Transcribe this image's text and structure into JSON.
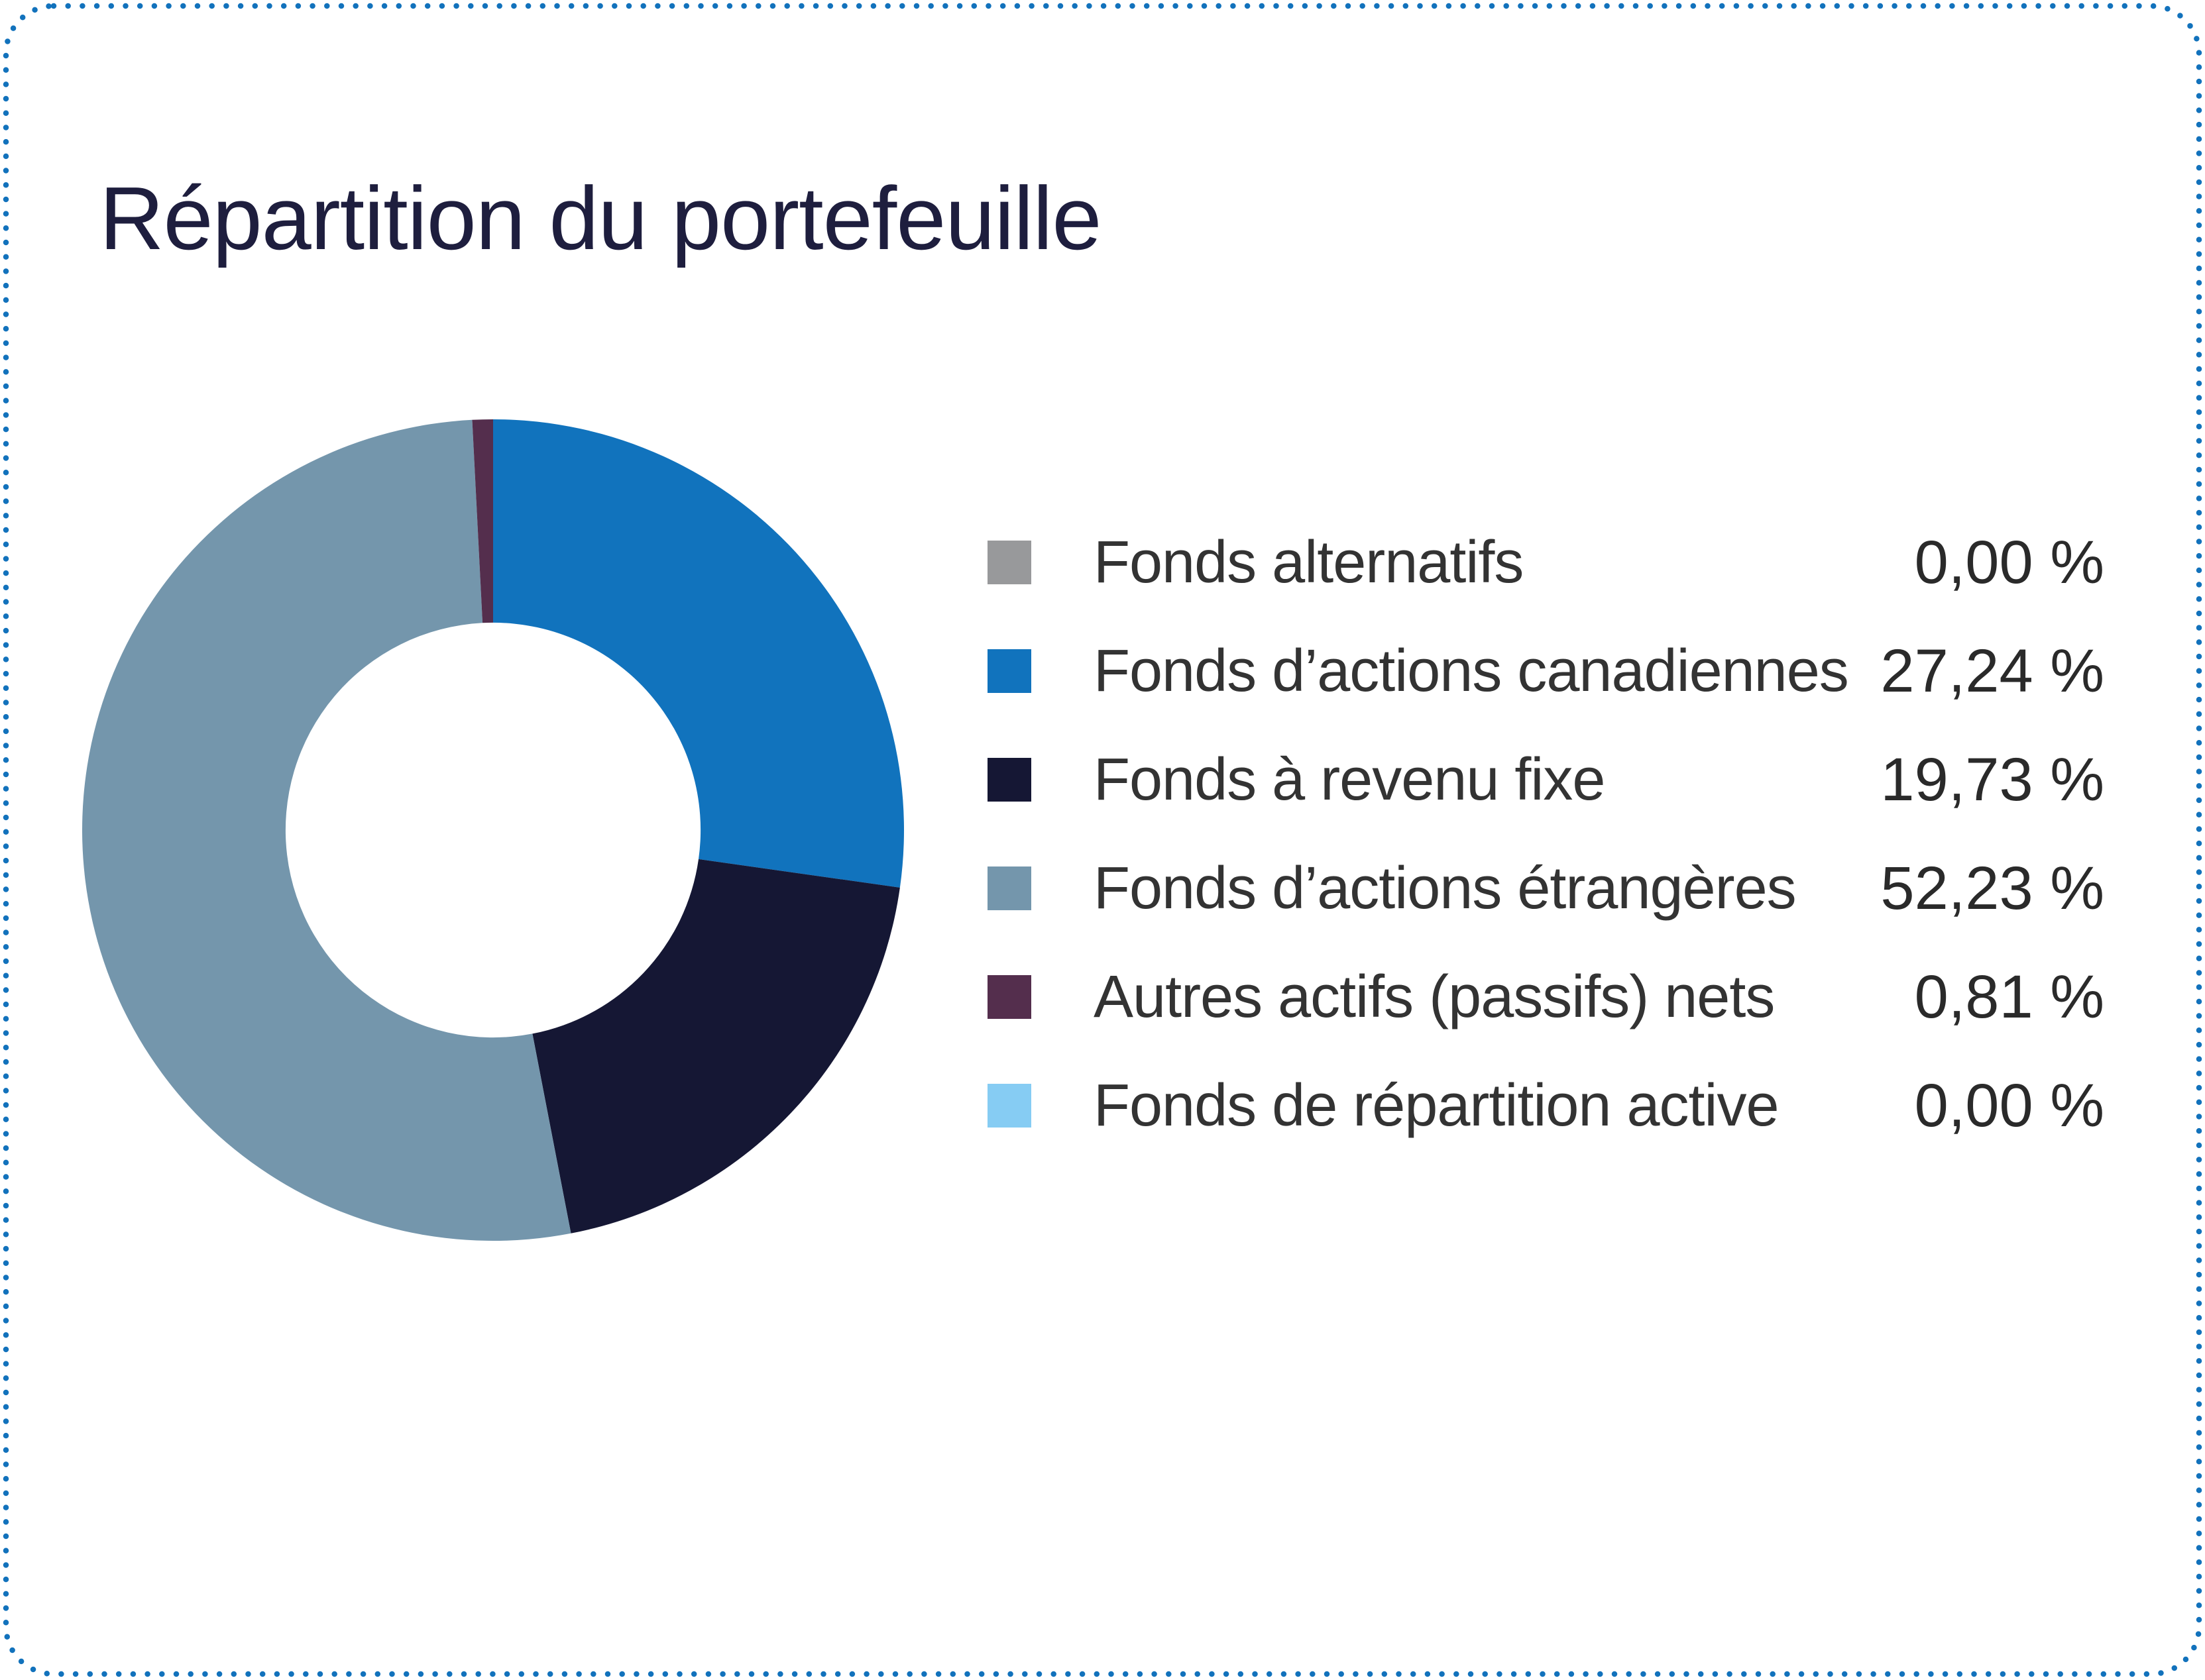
{
  "header": {
    "title": "Répartition du portefeuille"
  },
  "border": {
    "dot_color": "#1272bc"
  },
  "chart_data": {
    "type": "pie",
    "subtype": "donut",
    "title": "Répartition du portefeuille",
    "start_angle_deg": 0,
    "direction": "clockwise",
    "inner_radius_ratio": 0.505,
    "legend_position": "right",
    "categories": [
      "Fonds alternatifs",
      "Fonds d’actions canadiennes",
      "Fonds à revenu fixe",
      "Fonds d’actions étrangères",
      "Autres actifs (passifs) nets",
      "Fonds de répartition active"
    ],
    "values": [
      0.0,
      27.24,
      19.73,
      52.23,
      0.81,
      0.0
    ],
    "value_labels": [
      "0,00 %",
      "27,24 %",
      "19,73 %",
      "52,23 %",
      "0,81 %",
      "0,00 %"
    ],
    "colors": [
      "#98999b",
      "#1173bd",
      "#151734",
      "#7496ac",
      "#542e4d",
      "#86ccf3"
    ]
  }
}
